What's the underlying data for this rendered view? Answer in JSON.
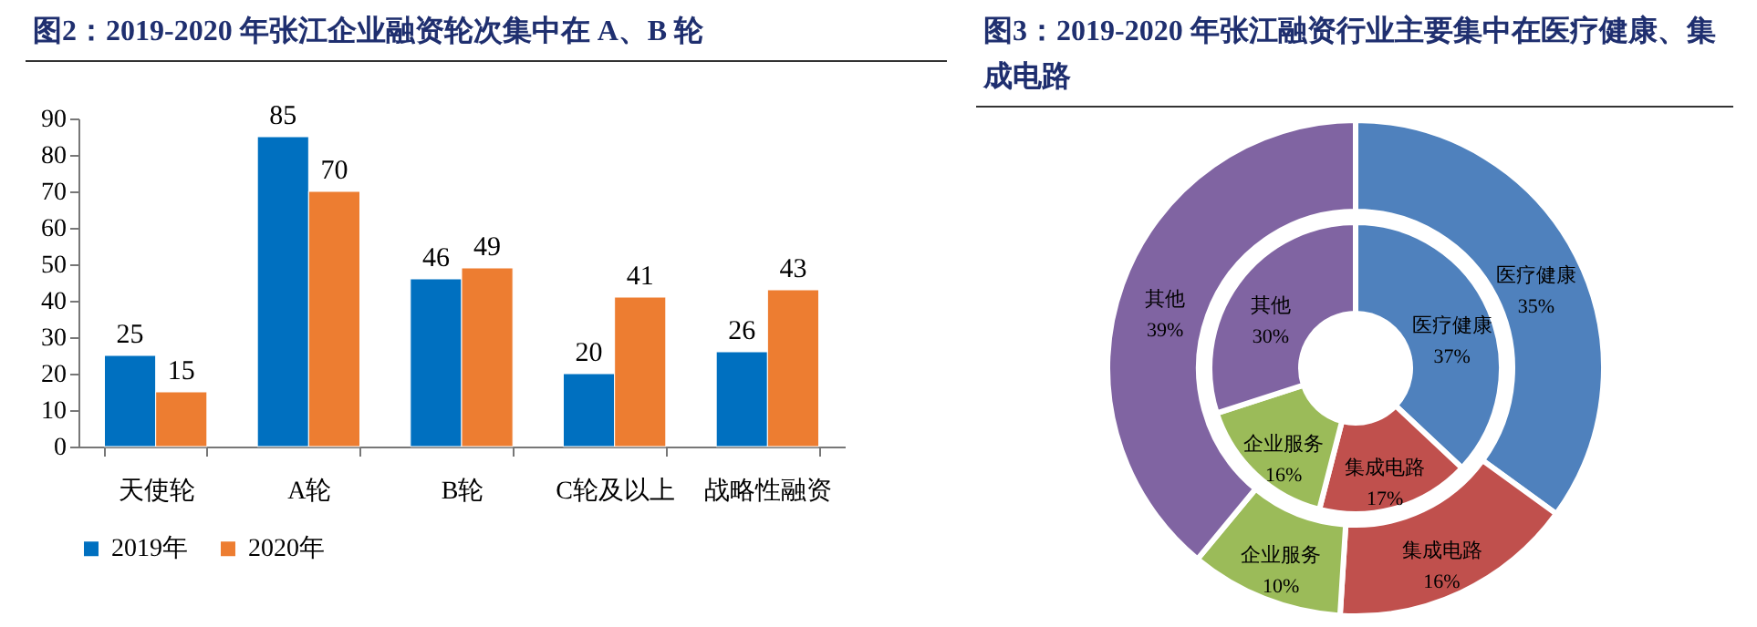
{
  "chart_data": [
    {
      "type": "bar",
      "title": "图2：2019-2020 年张江企业融资轮次集中在 A、B 轮",
      "categories": [
        "天使轮",
        "A轮",
        "B轮",
        "C轮及以上",
        "战略性融资"
      ],
      "series": [
        {
          "name": "2019年",
          "color": "#0070c0",
          "values": [
            25,
            85,
            46,
            20,
            26
          ]
        },
        {
          "name": "2020年",
          "color": "#ed7d31",
          "values": [
            15,
            70,
            49,
            41,
            43
          ]
        }
      ],
      "ylim": [
        0,
        90
      ],
      "yticks": [
        0,
        10,
        20,
        30,
        40,
        50,
        60,
        70,
        80,
        90
      ],
      "grid": false,
      "legend": "bottom",
      "data_labels": true
    },
    {
      "type": "donut",
      "title": "图3：2019-2020 年张江融资行业主要集中在医疗健康、集成电路",
      "categories": [
        "医疗健康",
        "集成电路",
        "企业服务",
        "其他"
      ],
      "colors": [
        "#4f81bd",
        "#c0504d",
        "#9bbb59",
        "#8064a2"
      ],
      "series": [
        {
          "values": [
            37,
            17,
            16,
            30
          ],
          "value_labels": [
            "37%",
            "17%",
            "16%",
            "30%"
          ]
        },
        {
          "values": [
            35,
            16,
            10,
            39
          ],
          "value_labels": [
            "35%",
            "16%",
            "10%",
            "39%"
          ]
        }
      ],
      "legend": false
    }
  ]
}
